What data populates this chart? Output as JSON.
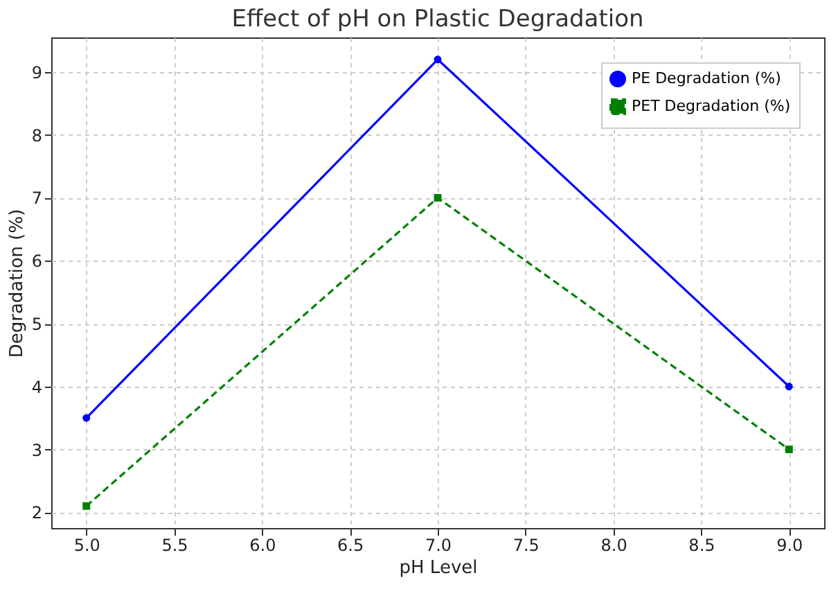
{
  "chart_data": {
    "type": "line",
    "title": "Effect of pH on Plastic Degradation",
    "xlabel": "pH Level",
    "ylabel": "Degradation (%)",
    "x": [
      5,
      7,
      9
    ],
    "series": [
      {
        "name": "PE Degradation (%)",
        "color": "#0000ff",
        "values": [
          3.5,
          9.2,
          4.0
        ],
        "marker": "circle",
        "line_style": "solid"
      },
      {
        "name": "PET Degradation (%)",
        "color": "#008000",
        "values": [
          2.1,
          7.0,
          3.0
        ],
        "marker": "square",
        "line_style": "dashed"
      }
    ],
    "xlim": [
      4.8,
      9.2
    ],
    "xticks": [
      {
        "value": 5,
        "label": "5.0"
      },
      {
        "value": 5.5,
        "label": "5.5"
      },
      {
        "value": 6,
        "label": "6.0"
      },
      {
        "value": 6.5,
        "label": "6.5"
      },
      {
        "value": 7,
        "label": "7.0"
      },
      {
        "value": 7.5,
        "label": "7.5"
      },
      {
        "value": 8,
        "label": "8.0"
      },
      {
        "value": 8.5,
        "label": "8.5"
      },
      {
        "value": 9,
        "label": "9.0"
      }
    ],
    "ylim": [
      1.75,
      9.55
    ],
    "yticks": [
      2,
      3,
      4,
      5,
      6,
      7,
      8,
      9
    ],
    "grid": true,
    "legend": "top right"
  }
}
